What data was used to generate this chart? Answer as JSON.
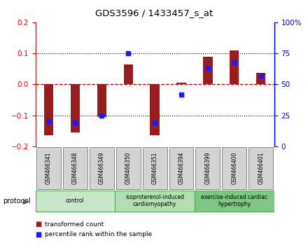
{
  "title": "GDS3596 / 1433457_s_at",
  "samples": [
    "GSM466341",
    "GSM466348",
    "GSM466349",
    "GSM466350",
    "GSM466351",
    "GSM466394",
    "GSM466399",
    "GSM466400",
    "GSM466401"
  ],
  "transformed_count": [
    -0.165,
    -0.155,
    -0.105,
    0.065,
    -0.165,
    0.005,
    0.09,
    0.11,
    0.038
  ],
  "percentile_rank": [
    20,
    19,
    25,
    75,
    19,
    42,
    63,
    68,
    57
  ],
  "groups": [
    {
      "label": "control",
      "start": 0,
      "end": 3,
      "color": "#c8e6c9"
    },
    {
      "label": "isoproterenol-induced\ncardiomyopathy",
      "start": 3,
      "end": 6,
      "color": "#b2dfb2"
    },
    {
      "label": "exercise-induced cardiac\nhypertrophy",
      "start": 6,
      "end": 9,
      "color": "#81c784"
    }
  ],
  "ylim": [
    -0.2,
    0.2
  ],
  "y2lim": [
    0,
    100
  ],
  "yticks": [
    -0.2,
    -0.1,
    0.0,
    0.1,
    0.2
  ],
  "y2ticks": [
    0,
    25,
    50,
    75,
    100
  ],
  "bar_color": "#9b1c1c",
  "dot_color": "#1a1aff",
  "bg_color": "#ffffff",
  "zero_line_color": "#cc0000",
  "legend_items": [
    "transformed count",
    "percentile rank within the sample"
  ]
}
